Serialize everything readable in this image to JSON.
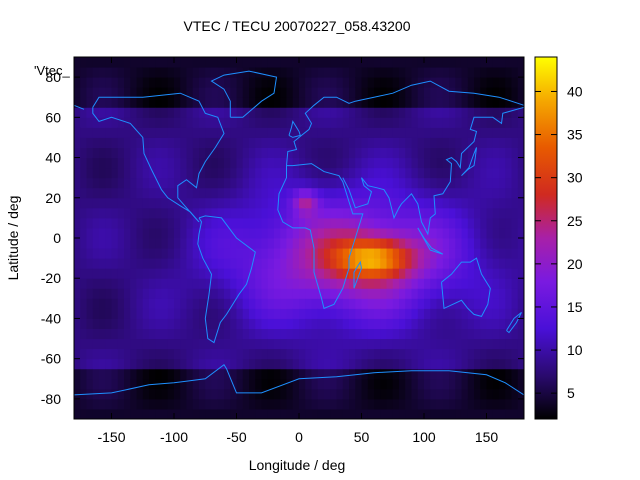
{
  "chart_data": {
    "type": "heatmap",
    "title": "VTEC / TECU 20070227_058.43200",
    "xlabel": "Longitude / deg",
    "ylabel": "Latitude / deg",
    "key_label": "'Vtec_",
    "xlim": [
      -180,
      180
    ],
    "ylim": [
      -90,
      90
    ],
    "x_ticks": [
      -150,
      -100,
      -50,
      0,
      50,
      100,
      150
    ],
    "y_ticks": [
      -80,
      -60,
      -40,
      -20,
      0,
      20,
      40,
      60,
      80
    ],
    "colorbar": {
      "range": [
        2,
        44
      ],
      "ticks": [
        5,
        10,
        15,
        20,
        25,
        30,
        35,
        40
      ],
      "colormap": "black-blue-purple-red-orange-yellow"
    },
    "grid": "off",
    "coastline_color": "#1e90ff",
    "field_description": {
      "background_level": 8,
      "peak_value": 43,
      "peak_location": [
        60,
        -10
      ],
      "secondary_peak_location": [
        5,
        18
      ],
      "high_region_lon": [
        -60,
        130
      ],
      "high_region_lat": [
        -45,
        25
      ]
    }
  }
}
